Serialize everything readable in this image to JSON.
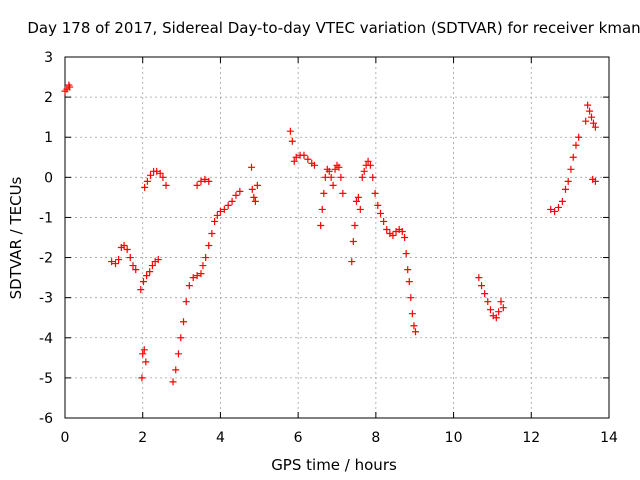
{
  "chart_data": {
    "type": "scatter",
    "title": "Day 178 of 2017, Sidereal Day-to-day VTEC variation (SDTVAR) for receiver kman",
    "xlabel": "GPS time / hours",
    "ylabel": "SDTVAR / TECUs",
    "xlim": [
      0,
      14
    ],
    "ylim": [
      -6,
      3
    ],
    "xticks": [
      0,
      2,
      4,
      6,
      8,
      10,
      12,
      14
    ],
    "yticks": [
      -6,
      -5,
      -4,
      -3,
      -2,
      -1,
      0,
      1,
      2,
      3
    ],
    "grid": true,
    "marker": "+",
    "color": "#ff0000",
    "series": [
      {
        "name": "SDTVAR",
        "points": [
          [
            0.0,
            2.15
          ],
          [
            0.05,
            2.2
          ],
          [
            0.1,
            2.3
          ],
          [
            0.12,
            2.25
          ],
          [
            1.2,
            -2.1
          ],
          [
            1.3,
            -2.15
          ],
          [
            1.38,
            -2.05
          ],
          [
            1.45,
            -1.75
          ],
          [
            1.52,
            -1.7
          ],
          [
            1.6,
            -1.8
          ],
          [
            1.68,
            -2.0
          ],
          [
            1.75,
            -2.2
          ],
          [
            1.82,
            -2.3
          ],
          [
            1.95,
            -2.8
          ],
          [
            2.02,
            -2.6
          ],
          [
            2.1,
            -2.45
          ],
          [
            2.18,
            -2.35
          ],
          [
            2.25,
            -2.2
          ],
          [
            2.32,
            -2.1
          ],
          [
            2.4,
            -2.05
          ],
          [
            1.98,
            -5.0
          ],
          [
            2.0,
            -4.4
          ],
          [
            2.04,
            -4.3
          ],
          [
            2.08,
            -4.6
          ],
          [
            2.05,
            -0.25
          ],
          [
            2.12,
            -0.1
          ],
          [
            2.2,
            0.05
          ],
          [
            2.28,
            0.15
          ],
          [
            2.36,
            0.15
          ],
          [
            2.45,
            0.1
          ],
          [
            2.52,
            0.0
          ],
          [
            2.6,
            -0.2
          ],
          [
            2.78,
            -5.1
          ],
          [
            2.85,
            -4.8
          ],
          [
            2.92,
            -4.4
          ],
          [
            2.98,
            -4.0
          ],
          [
            3.05,
            -3.6
          ],
          [
            3.12,
            -3.1
          ],
          [
            3.2,
            -2.7
          ],
          [
            3.3,
            -2.5
          ],
          [
            3.4,
            -2.45
          ],
          [
            3.5,
            -2.4
          ],
          [
            3.55,
            -2.2
          ],
          [
            3.62,
            -2.0
          ],
          [
            3.7,
            -1.7
          ],
          [
            3.78,
            -1.4
          ],
          [
            3.85,
            -1.1
          ],
          [
            3.92,
            -0.95
          ],
          [
            4.0,
            -0.85
          ],
          [
            4.1,
            -0.8
          ],
          [
            4.2,
            -0.7
          ],
          [
            4.3,
            -0.6
          ],
          [
            4.4,
            -0.45
          ],
          [
            4.5,
            -0.35
          ],
          [
            3.4,
            -0.2
          ],
          [
            3.5,
            -0.1
          ],
          [
            3.6,
            -0.05
          ],
          [
            3.7,
            -0.1
          ],
          [
            4.8,
            0.25
          ],
          [
            4.82,
            -0.3
          ],
          [
            4.86,
            -0.5
          ],
          [
            4.9,
            -0.6
          ],
          [
            4.95,
            -0.2
          ],
          [
            5.8,
            1.15
          ],
          [
            5.85,
            0.9
          ],
          [
            5.9,
            0.4
          ],
          [
            5.95,
            0.5
          ],
          [
            6.05,
            0.55
          ],
          [
            6.15,
            0.55
          ],
          [
            6.25,
            0.45
          ],
          [
            6.35,
            0.35
          ],
          [
            6.42,
            0.3
          ],
          [
            6.58,
            -1.2
          ],
          [
            6.62,
            -0.8
          ],
          [
            6.66,
            -0.4
          ],
          [
            6.7,
            0.0
          ],
          [
            6.75,
            0.2
          ],
          [
            6.8,
            0.15
          ],
          [
            6.85,
            0.0
          ],
          [
            6.9,
            -0.2
          ],
          [
            6.95,
            0.2
          ],
          [
            7.0,
            0.3
          ],
          [
            7.05,
            0.25
          ],
          [
            7.1,
            0.0
          ],
          [
            7.15,
            -0.4
          ],
          [
            7.38,
            -2.1
          ],
          [
            7.42,
            -1.6
          ],
          [
            7.46,
            -1.2
          ],
          [
            7.5,
            -0.6
          ],
          [
            7.55,
            -0.5
          ],
          [
            7.6,
            -0.8
          ],
          [
            7.65,
            0.0
          ],
          [
            7.7,
            0.15
          ],
          [
            7.75,
            0.3
          ],
          [
            7.8,
            0.4
          ],
          [
            7.86,
            0.3
          ],
          [
            7.92,
            0.0
          ],
          [
            7.98,
            -0.4
          ],
          [
            8.05,
            -0.7
          ],
          [
            8.12,
            -0.9
          ],
          [
            8.2,
            -1.1
          ],
          [
            8.28,
            -1.3
          ],
          [
            8.36,
            -1.4
          ],
          [
            8.44,
            -1.45
          ],
          [
            8.52,
            -1.35
          ],
          [
            8.6,
            -1.3
          ],
          [
            8.68,
            -1.35
          ],
          [
            8.74,
            -1.5
          ],
          [
            8.78,
            -1.9
          ],
          [
            8.82,
            -2.3
          ],
          [
            8.86,
            -2.6
          ],
          [
            8.9,
            -3.0
          ],
          [
            8.94,
            -3.4
          ],
          [
            8.98,
            -3.7
          ],
          [
            9.02,
            -3.85
          ],
          [
            10.65,
            -2.5
          ],
          [
            10.72,
            -2.7
          ],
          [
            10.8,
            -2.9
          ],
          [
            10.88,
            -3.1
          ],
          [
            10.95,
            -3.3
          ],
          [
            11.02,
            -3.45
          ],
          [
            11.1,
            -3.5
          ],
          [
            11.16,
            -3.35
          ],
          [
            11.22,
            -3.1
          ],
          [
            11.28,
            -3.25
          ],
          [
            12.5,
            -0.8
          ],
          [
            12.6,
            -0.85
          ],
          [
            12.7,
            -0.75
          ],
          [
            12.8,
            -0.6
          ],
          [
            12.88,
            -0.3
          ],
          [
            12.95,
            -0.1
          ],
          [
            13.02,
            0.2
          ],
          [
            13.08,
            0.5
          ],
          [
            13.15,
            0.8
          ],
          [
            13.22,
            1.0
          ],
          [
            13.4,
            1.4
          ],
          [
            13.45,
            1.8
          ],
          [
            13.5,
            1.65
          ],
          [
            13.55,
            1.5
          ],
          [
            13.6,
            1.35
          ],
          [
            13.65,
            1.25
          ],
          [
            13.58,
            -0.05
          ],
          [
            13.65,
            -0.1
          ]
        ]
      }
    ]
  }
}
